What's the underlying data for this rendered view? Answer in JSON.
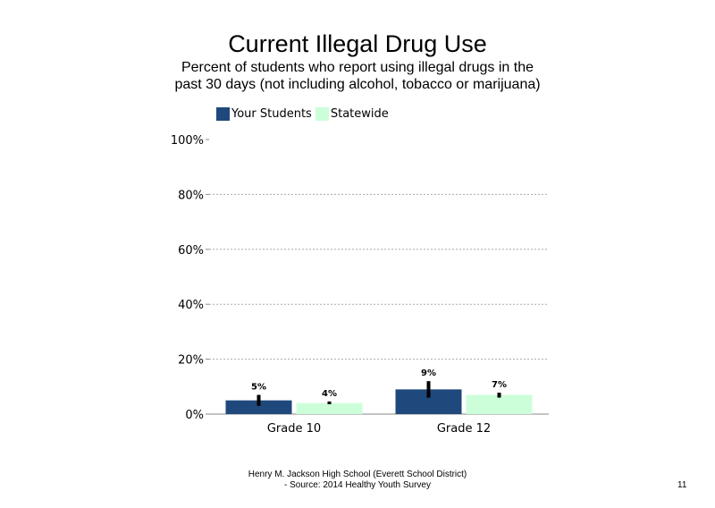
{
  "title": "Current Illegal Drug Use",
  "subtitle": "Percent of students who report using illegal drugs in the past 30 days (not including alcohol, tobacco or marijuana)",
  "footer": {
    "line1": "Henry M. Jackson High School (Everett School District)",
    "line2": "- Source: 2014 Healthy Youth Survey"
  },
  "page_number": "11",
  "colors": {
    "your_students": "#1f497d",
    "statewide": "#ccffd9",
    "error_bar": "#000000",
    "grid": "#aaaaaa"
  },
  "chart_data": {
    "type": "bar",
    "title": "Current Illegal Drug Use",
    "categories": [
      "Grade 10",
      "Grade 12"
    ],
    "series": [
      {
        "name": "Your Students",
        "values": [
          5,
          9
        ],
        "labels": [
          "5%",
          "9%"
        ],
        "error_low": [
          3,
          6
        ],
        "error_high": [
          7,
          12
        ]
      },
      {
        "name": "Statewide",
        "values": [
          4,
          7
        ],
        "labels": [
          "4%",
          "7%"
        ],
        "error_low": [
          3.6,
          6
        ],
        "error_high": [
          4.6,
          7.8
        ]
      }
    ],
    "ylim": [
      0,
      100
    ],
    "yticks": [
      0,
      20,
      40,
      60,
      80,
      100
    ],
    "ytick_labels": [
      "0%",
      "20%",
      "40%",
      "60%",
      "80%",
      "100%"
    ],
    "xlabel": "",
    "ylabel": "",
    "grid": true,
    "legend": "top-left"
  }
}
